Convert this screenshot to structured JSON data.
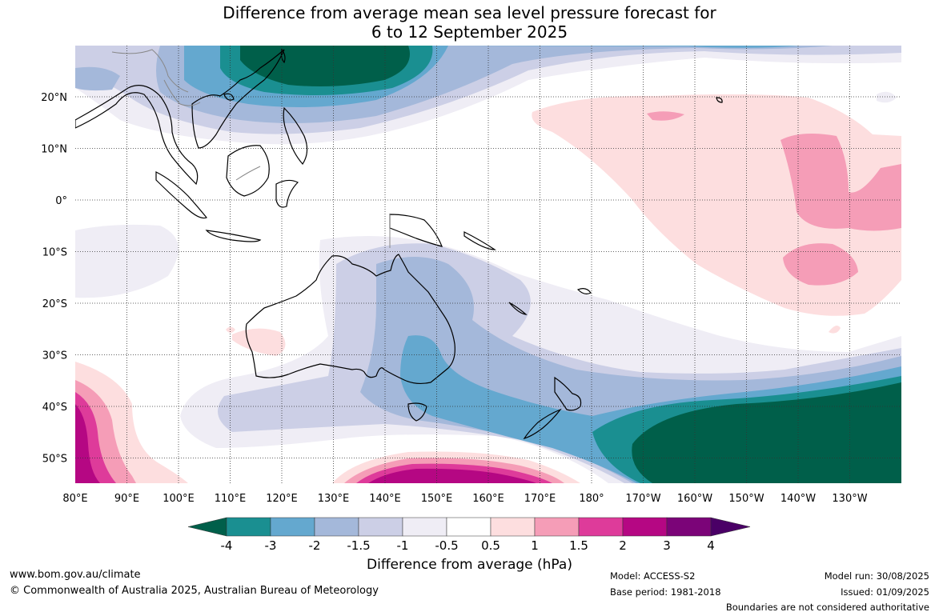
{
  "title": {
    "line1": "Difference from average mean sea level pressure forecast for",
    "line2": "6 to 12 September 2025"
  },
  "map": {
    "lon_labels": [
      "80°E",
      "90°E",
      "100°E",
      "110°E",
      "120°E",
      "130°E",
      "140°E",
      "150°E",
      "160°E",
      "170°E",
      "180°",
      "170°W",
      "160°W",
      "150°W",
      "140°W",
      "130°W"
    ],
    "lat_labels": [
      "20°N",
      "10°N",
      "0°",
      "10°S",
      "20°S",
      "30°S",
      "40°S",
      "50°S"
    ],
    "colors": {
      "bin_le_-4": "#005f4a",
      "bin_-4_-3": "#1a8f91",
      "bin_-3_-2": "#64a8cf",
      "bin_-2_-1.5": "#a4b8da",
      "bin_-1.5_-1": "#cccfe6",
      "bin_-1_-0.5": "#efedf5",
      "bin_-0.5_0.5": "#ffffff",
      "bin_0.5_1": "#fddedf",
      "bin_1_1.5": "#f59db7",
      "bin_1.5_2": "#de3b9a",
      "bin_2_3": "#b50783",
      "bin_3_4": "#7b0478",
      "bin_ge_4": "#4a0066"
    }
  },
  "colorbar": {
    "tick_labels": [
      "-4",
      "-3",
      "-2",
      "-1.5",
      "-1",
      "-0.5",
      "0.5",
      "1",
      "1.5",
      "2",
      "3",
      "4"
    ],
    "label": "Difference from average (hPa)"
  },
  "footer": {
    "website": "www.bom.gov.au/climate",
    "copyright": "© Commonwealth of Australia 2025, Australian Bureau of Meteorology",
    "model": "Model: ACCESS-S2",
    "base_period": "Base period: 1981-2018",
    "model_run": "Model run: 30/08/2025",
    "issued": "Issued: 01/09/2025",
    "disclaimer": "Boundaries are not considered authoritative"
  }
}
